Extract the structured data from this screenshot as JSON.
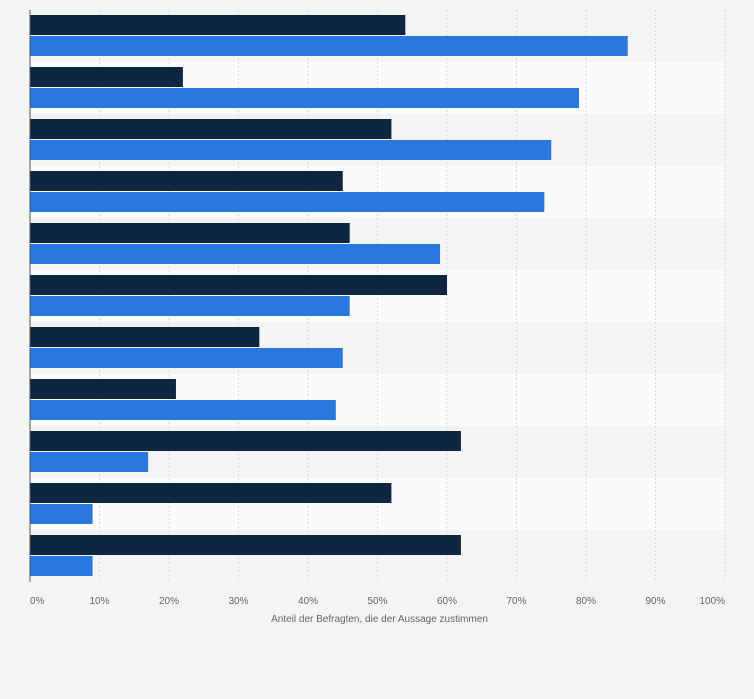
{
  "chart_data": {
    "type": "bar",
    "orientation": "horizontal",
    "title": "",
    "xlabel": "Anteil der Befragten, die der Aussage zustimmen",
    "ylabel": "",
    "xlim": [
      0,
      100
    ],
    "x_ticks": [
      "0%",
      "10%",
      "20%",
      "30%",
      "40%",
      "50%",
      "60%",
      "70%",
      "80%",
      "90%",
      "100%"
    ],
    "grid": "vertical",
    "legend": "none",
    "categories": [
      "",
      "",
      "",
      "",
      "",
      "",
      "",
      "",
      "",
      "",
      ""
    ],
    "series": [
      {
        "color": "#0f2640",
        "values": [
          54,
          22,
          52,
          45,
          46,
          60,
          33,
          21,
          62,
          52,
          62
        ]
      },
      {
        "color": "#2878df",
        "values": [
          86,
          79,
          75,
          74,
          59,
          46,
          45,
          44,
          17,
          9,
          9
        ]
      }
    ]
  }
}
